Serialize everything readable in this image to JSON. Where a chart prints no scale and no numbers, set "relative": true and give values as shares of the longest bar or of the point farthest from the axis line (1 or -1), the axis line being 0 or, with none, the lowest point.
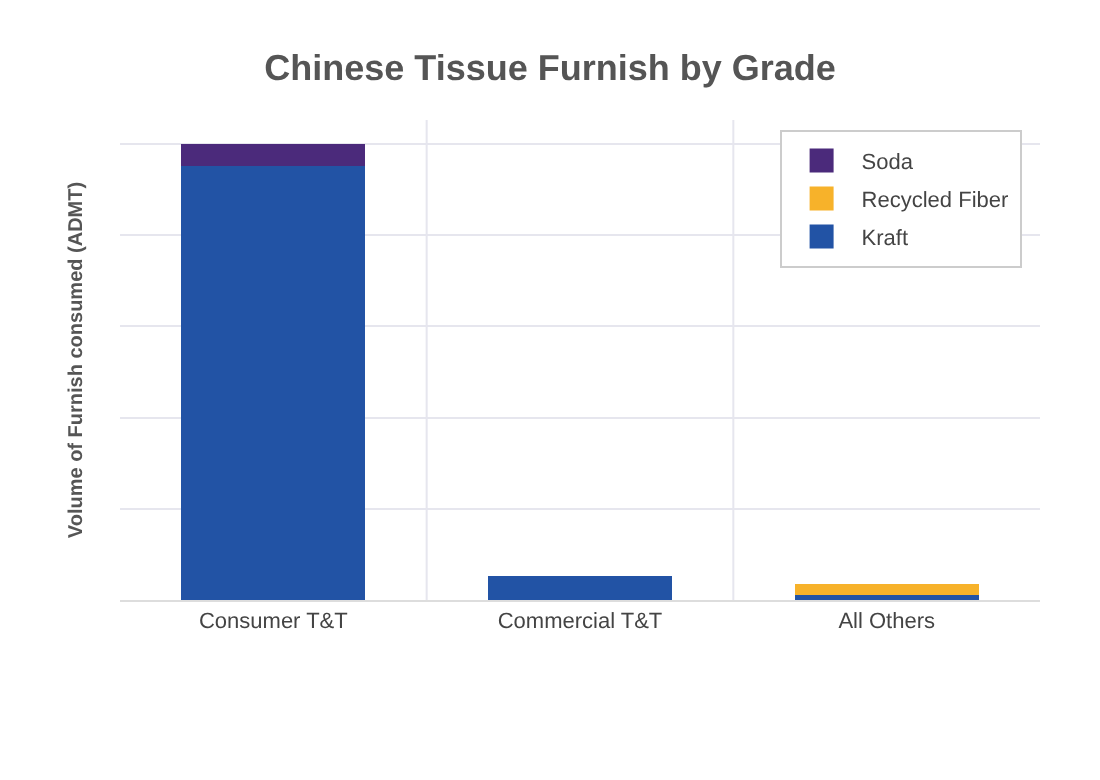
{
  "chart_data": {
    "type": "bar",
    "title": "Chinese Tissue Furnish by Grade",
    "ylabel": "Volume of Furnish consumed (ADMT)",
    "relative": true,
    "stacked": true,
    "grid": true,
    "legend": "top right",
    "categories": [
      "Consumer T&T",
      "Commercial T&T",
      "All Others"
    ],
    "series": [
      {
        "name": "Kraft",
        "color": "#2253a5",
        "values": [
          0.951,
          0.053,
          0.011
        ]
      },
      {
        "name": "Recycled Fiber",
        "color": "#f7b22a",
        "values": [
          0,
          0,
          0.025
        ]
      },
      {
        "name": "Soda",
        "color": "#4b2a7b",
        "values": [
          0.049,
          0,
          0
        ]
      }
    ]
  }
}
